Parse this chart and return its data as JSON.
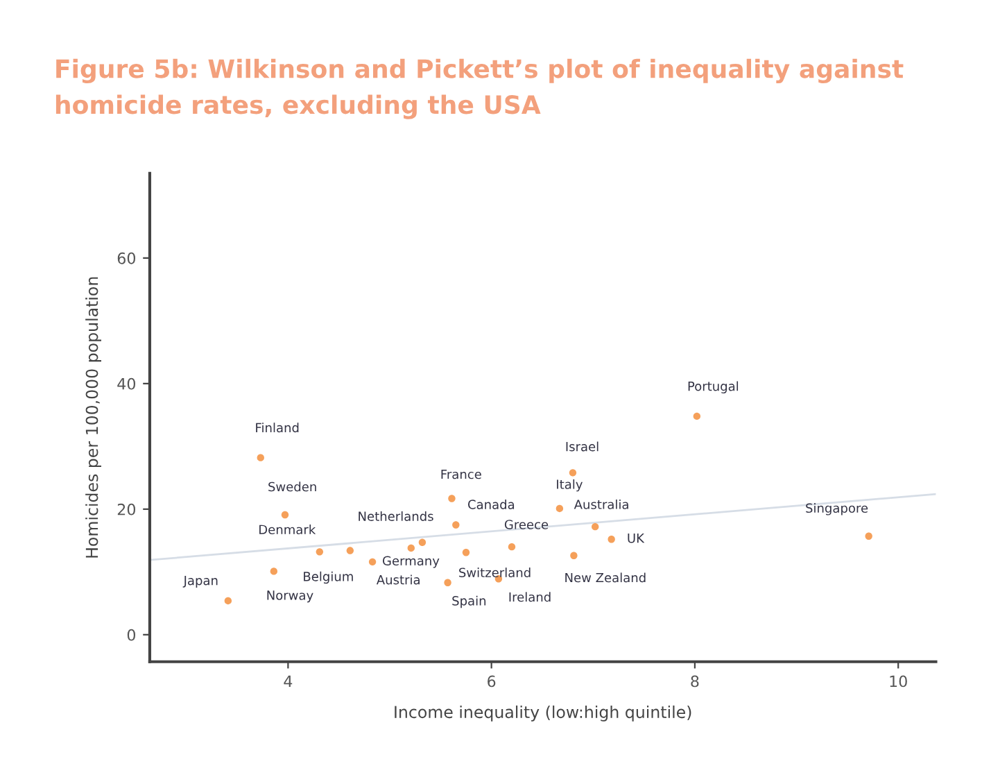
{
  "chart_data": {
    "type": "scatter",
    "title": "Figure 5b: Wilkinson and Pickett’s plot of inequality against homicide rates, excluding the USA",
    "xlabel": "Income inequality (low:high quintile)",
    "ylabel": "Homicides per 100,000 population",
    "xlim": [
      2.64,
      10.37
    ],
    "xticks": [
      4,
      6,
      8,
      10
    ],
    "ylim": [
      -4.3,
      73.5
    ],
    "yticks": [
      0,
      20,
      40,
      60
    ],
    "grid": false,
    "legend": false,
    "series": [
      {
        "marker": "circle",
        "color": "#f5a05a",
        "x": [
          3.41,
          3.73,
          3.97,
          4.31,
          3.86,
          4.61,
          4.83,
          5.21,
          5.32,
          5.57,
          5.61,
          5.65,
          5.75,
          6.07,
          6.2,
          6.67,
          6.8,
          6.81,
          7.02,
          7.18,
          8.02,
          9.71
        ],
        "values": [
          5.4,
          28.2,
          19.1,
          13.2,
          10.1,
          13.4,
          11.6,
          13.8,
          14.7,
          8.3,
          21.7,
          17.5,
          13.1,
          8.9,
          14.0,
          20.1,
          25.8,
          12.6,
          17.2,
          15.2,
          34.8,
          15.7
        ]
      },
      {
        "type": "line",
        "marker": "none",
        "color": "#d6dde6",
        "x": [
          2.64,
          10.37
        ],
        "values": [
          11.9,
          22.4
        ]
      }
    ],
    "annotations": [
      {
        "text": "Japan",
        "x": 3.41,
        "y": 5.4
      },
      {
        "text": "Finland",
        "x": 3.73,
        "y": 28.2
      },
      {
        "text": "Sweden",
        "x": 3.97,
        "y": 19.1
      },
      {
        "text": "Denmark",
        "x": 4.31,
        "y": 13.2
      },
      {
        "text": "Norway",
        "x": 3.86,
        "y": 10.1
      },
      {
        "text": "Belgium",
        "x": 4.61,
        "y": 13.4
      },
      {
        "text": "Germany",
        "x": 4.83,
        "y": 11.6
      },
      {
        "text": "Austria",
        "x": 5.21,
        "y": 13.8
      },
      {
        "text": "Netherlands",
        "x": 5.32,
        "y": 14.7
      },
      {
        "text": "Spain",
        "x": 5.57,
        "y": 8.3
      },
      {
        "text": "France",
        "x": 5.61,
        "y": 21.7
      },
      {
        "text": "Canada",
        "x": 5.65,
        "y": 17.5
      },
      {
        "text": "Switzerland",
        "x": 5.75,
        "y": 13.1
      },
      {
        "text": "Ireland",
        "x": 6.07,
        "y": 8.9
      },
      {
        "text": "Greece",
        "x": 6.2,
        "y": 14.0
      },
      {
        "text": "Italy",
        "x": 6.67,
        "y": 20.1
      },
      {
        "text": "Israel",
        "x": 6.8,
        "y": 25.8
      },
      {
        "text": "New Zealand",
        "x": 6.81,
        "y": 12.6
      },
      {
        "text": "Australia",
        "x": 7.02,
        "y": 17.2
      },
      {
        "text": "UK",
        "x": 7.18,
        "y": 15.2
      },
      {
        "text": "Portugal",
        "x": 8.02,
        "y": 34.8
      },
      {
        "text": "Singapore",
        "x": 9.71,
        "y": 15.7
      }
    ]
  }
}
